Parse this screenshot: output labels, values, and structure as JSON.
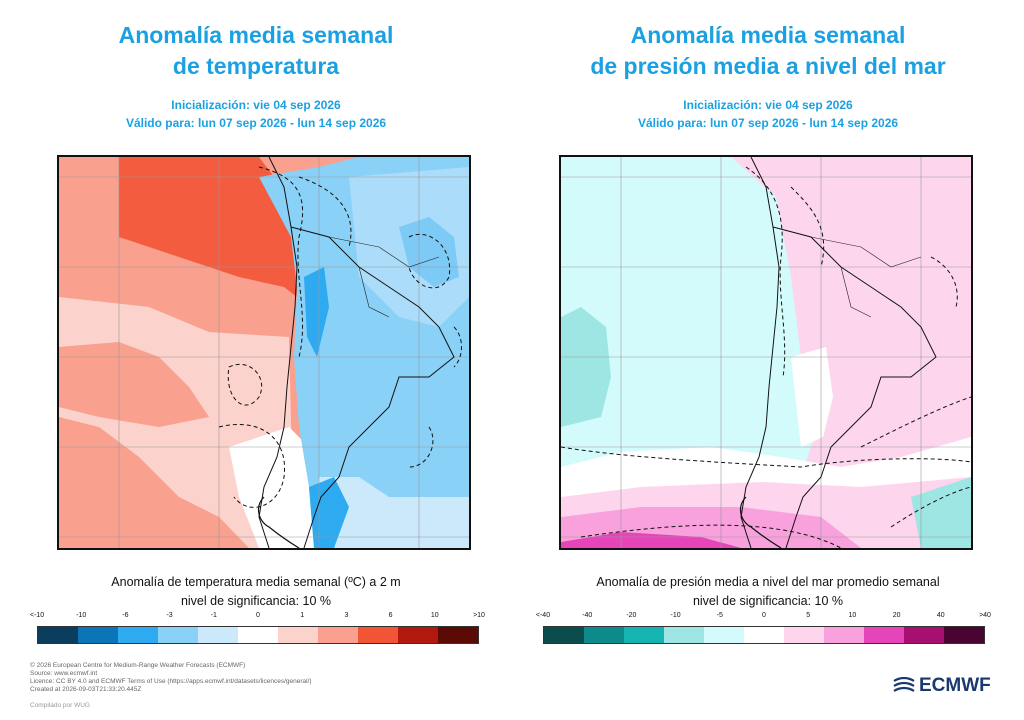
{
  "left": {
    "title_line1": "Anomalía media semanal",
    "title_line2": "de temperatura",
    "init": "Inicialización: vie 04 sep 2026",
    "valid": "Válido para: lun 07 sep 2026 - lun 14 sep 2026",
    "caption_line1": "Anomalía de temperatura media semanal (ºC) a 2 m",
    "caption_line2": "nivel de significancia: 10 %",
    "colorbar": {
      "ticks": [
        "<-10",
        "-10",
        "-6",
        "-3",
        "-1",
        "0",
        "1",
        "3",
        "6",
        "10",
        ">10"
      ],
      "colors": [
        "#0a3d5e",
        "#0a76b8",
        "#2eaaf0",
        "#8ad1f8",
        "#cbe9fb",
        "#ffffff",
        "#fcd2cc",
        "#f9a08e",
        "#f25436",
        "#b21a10",
        "#5c0a06"
      ]
    }
  },
  "right": {
    "title_line1": "Anomalía media semanal",
    "title_line2": "de presión media a nivel del mar",
    "init": "Inicialización: vie 04 sep 2026",
    "valid": "Válido para: lun 07 sep 2026 - lun 14 sep 2026",
    "caption_line1": "Anomalía de presión media a nivel del mar promedio semanal",
    "caption_line2": "nivel de significancia: 10 %",
    "colorbar": {
      "ticks": [
        "<-40",
        "-40",
        "-20",
        "-10",
        "-5",
        "0",
        "5",
        "10",
        "20",
        "40",
        ">40"
      ],
      "colors": [
        "#0b4d4c",
        "#0c8b8a",
        "#16b4b1",
        "#9ee6e3",
        "#d4fbfb",
        "#ffffff",
        "#fdd6ee",
        "#f9a1dc",
        "#e545b8",
        "#a8106f",
        "#4a0431"
      ]
    }
  },
  "footer": {
    "line1": "© 2026 European Centre for Medium-Range Weather Forecasts (ECMWF)",
    "line2": "Source: www.ecmwf.int",
    "line3": "Licence: CC BY 4.0 and ECMWF Terms of Use (https://apps.ecmwf.int/datasets/licences/general/)",
    "line4": "Created at 2026-09-03T21:33:20.445Z",
    "compiled": "Compilado por WUG"
  },
  "logo": {
    "text": "ECMWF",
    "icon": "ecmwf-logo-icon"
  }
}
